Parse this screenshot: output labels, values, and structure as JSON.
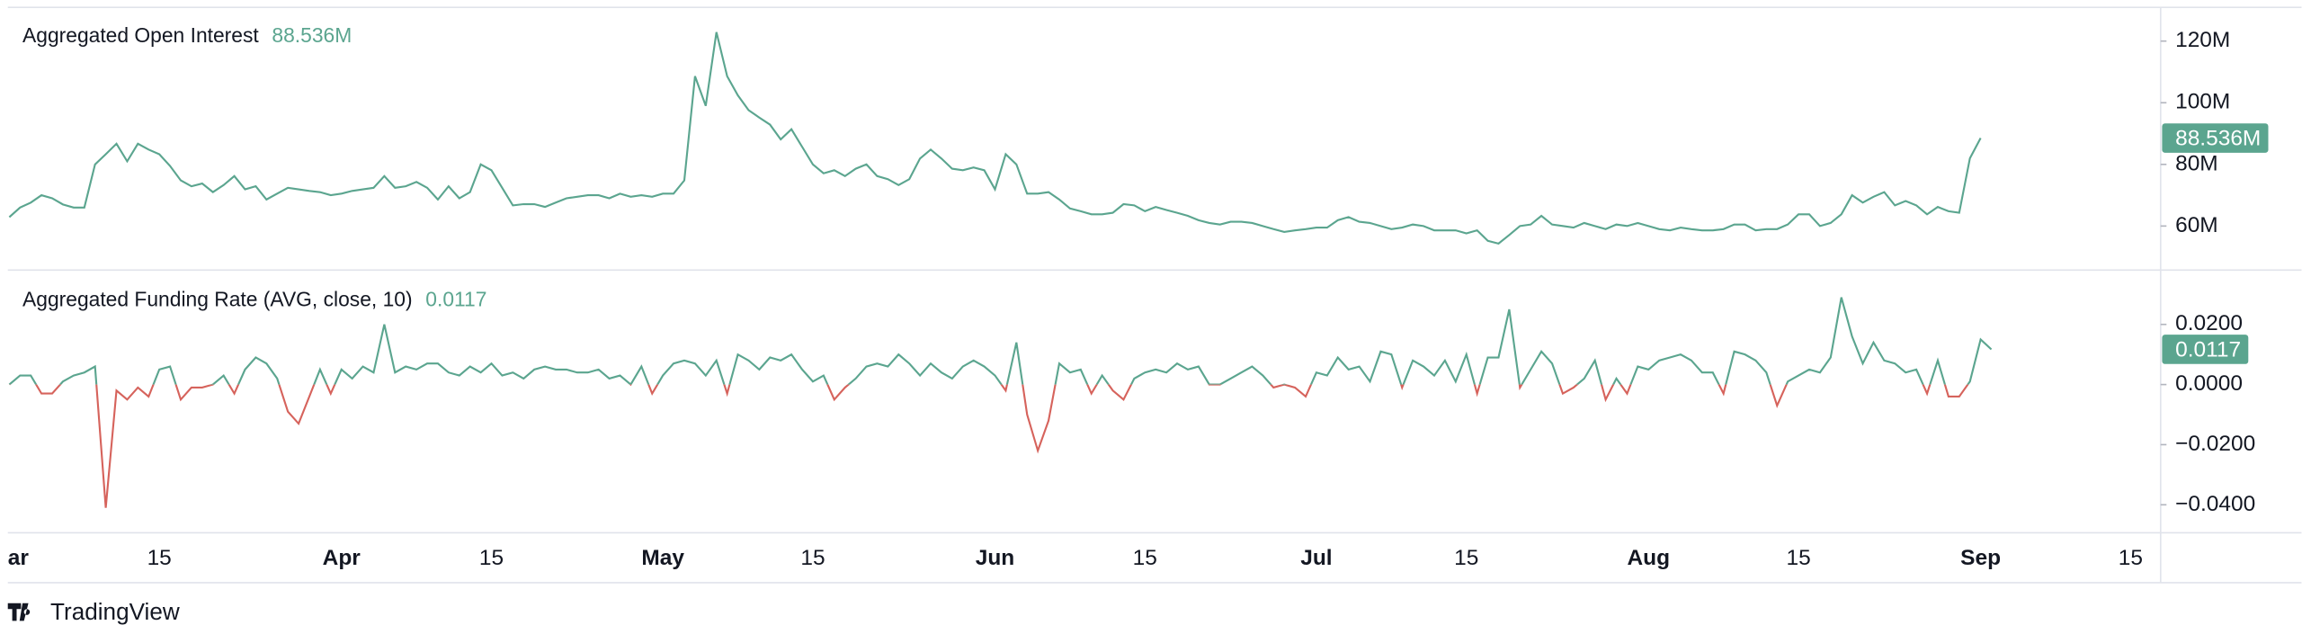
{
  "chart_data": [
    {
      "type": "line",
      "title": "Aggregated Open Interest",
      "last_label": "88.536M",
      "series": [
        {
          "name": "Aggregated Open Interest",
          "color": "#5ba58f",
          "values": [
            62.9,
            66,
            67.6,
            70,
            69,
            67,
            66,
            66,
            80,
            83.3,
            86.7,
            81,
            86.7,
            84.8,
            83.3,
            79.5,
            74.8,
            72.9,
            73.8,
            71,
            73.3,
            76.2,
            71.9,
            72.9,
            68.6,
            70.5,
            72.4,
            71.9,
            71.4,
            71,
            70,
            70.5,
            71.4,
            71.9,
            72.4,
            76.2,
            72.4,
            72.9,
            74.3,
            72.4,
            68.6,
            72.9,
            69,
            71,
            80,
            78.1,
            72.4,
            66.7,
            67.1,
            67.1,
            66.2,
            67.6,
            69,
            69.5,
            70,
            70,
            69,
            70.5,
            69.5,
            70,
            69.5,
            70.5,
            70.5,
            74.8,
            108.6,
            99,
            122.9,
            108.6,
            102.4,
            97.6,
            95.2,
            92.9,
            88.1,
            91.4,
            85.7,
            80,
            77.1,
            78.1,
            76.2,
            78.6,
            80,
            76.2,
            75.2,
            73.3,
            75.2,
            81.9,
            84.8,
            81.9,
            78.6,
            78.1,
            79,
            78.1,
            71.9,
            83.3,
            80,
            70.5,
            70.5,
            71,
            68.6,
            65.7,
            64.8,
            63.8,
            63.8,
            64.3,
            67.1,
            66.7,
            64.8,
            66.2,
            65.2,
            64.3,
            63.3,
            61.9,
            61,
            60.5,
            61.4,
            61.4,
            61,
            60,
            59,
            58.1,
            58.6,
            59,
            59.5,
            59.5,
            61.9,
            62.9,
            61.4,
            61,
            60,
            59,
            59.5,
            60.5,
            60,
            58.6,
            58.6,
            58.6,
            57.6,
            58.6,
            55.2,
            54.3,
            57.1,
            60,
            60.5,
            63.3,
            60.5,
            60,
            59.5,
            61,
            60,
            59,
            60.5,
            60,
            61,
            60,
            59,
            58.6,
            59.5,
            59,
            58.6,
            58.6,
            59,
            60.5,
            60.5,
            58.6,
            59,
            59,
            60.5,
            63.8,
            63.8,
            60,
            61,
            63.8,
            70,
            67.6,
            69.5,
            71,
            66.7,
            68.1,
            66.7,
            63.8,
            66.2,
            64.8,
            64.3,
            82,
            88.536
          ]
        }
      ],
      "ylim": [
        46.2,
        130.95
      ],
      "yticks": [
        {
          "value": 60,
          "label": "60M"
        },
        {
          "value": 80,
          "label": "80M"
        },
        {
          "value": 100,
          "label": "100M"
        },
        {
          "value": 120,
          "label": "120M"
        }
      ]
    },
    {
      "type": "line",
      "title": "Aggregated Funding Rate (AVG, close, 10)",
      "last_label": "0.0117",
      "series": [
        {
          "name": "Aggregated Funding Rate",
          "color": "#5ba58f",
          "negative_color": "#d6635c",
          "values": [
            0,
            0.003,
            0.003,
            -0.003,
            -0.003,
            0.001,
            0.003,
            0.004,
            0.006,
            -0.041,
            -0.002,
            -0.005,
            -0.001,
            -0.004,
            0.005,
            0.006,
            -0.005,
            -0.001,
            -0.001,
            0,
            0.003,
            -0.003,
            0.005,
            0.009,
            0.007,
            0.002,
            -0.009,
            -0.013,
            -0.004,
            0.005,
            -0.003,
            0.005,
            0.002,
            0.006,
            0.004,
            0.02,
            0.004,
            0.006,
            0.005,
            0.007,
            0.007,
            0.004,
            0.003,
            0.006,
            0.004,
            0.007,
            0.003,
            0.004,
            0.002,
            0.005,
            0.006,
            0.005,
            0.005,
            0.004,
            0.004,
            0.005,
            0.002,
            0.003,
            0,
            0.006,
            -0.003,
            0.003,
            0.007,
            0.008,
            0.007,
            0.003,
            0.008,
            -0.003,
            0.01,
            0.008,
            0.005,
            0.009,
            0.008,
            0.01,
            0.005,
            0.001,
            0.003,
            -0.005,
            -0.001,
            0.002,
            0.006,
            0.007,
            0.006,
            0.01,
            0.007,
            0.003,
            0.007,
            0.004,
            0.002,
            0.006,
            0.008,
            0.006,
            0.003,
            -0.002,
            0.014,
            -0.01,
            -0.022,
            -0.012,
            0.007,
            0.004,
            0.005,
            -0.003,
            0.003,
            -0.002,
            -0.005,
            0.002,
            0.004,
            0.005,
            0.004,
            0.007,
            0.005,
            0.006,
            0,
            0,
            0.002,
            0.004,
            0.006,
            0.003,
            -0.001,
            0,
            -0.001,
            -0.004,
            0.004,
            0.003,
            0.009,
            0.005,
            0.006,
            0.001,
            0.011,
            0.01,
            -0.001,
            0.008,
            0.006,
            0.003,
            0.008,
            0.001,
            0.01,
            -0.003,
            0.009,
            0.009,
            0.025,
            -0.001,
            0.005,
            0.011,
            0.007,
            -0.003,
            -0.001,
            0.002,
            0.008,
            -0.005,
            0.002,
            -0.003,
            0.006,
            0.005,
            0.008,
            0.009,
            0.01,
            0.008,
            0.004,
            0.004,
            -0.003,
            0.011,
            0.01,
            0.008,
            0.004,
            -0.007,
            0.001,
            0.003,
            0.005,
            0.004,
            0.009,
            0.029,
            0.016,
            0.007,
            0.014,
            0.008,
            0.007,
            0.004,
            0.005,
            -0.003,
            0.008,
            -0.004,
            -0.004,
            0.001,
            0.015,
            0.0117
          ]
        }
      ],
      "ylim": [
        -0.0493,
        0.0376
      ],
      "yticks": [
        {
          "value": -0.04,
          "label": "−0.0400"
        },
        {
          "value": -0.02,
          "label": "−0.0200"
        },
        {
          "value": 0,
          "label": "0.0000"
        },
        {
          "value": 0.02,
          "label": "0.0200"
        }
      ]
    }
  ],
  "x_axis": {
    "xlim": [
      -0.14,
      200.8
    ],
    "xticks": [
      {
        "value": 0,
        "label": "ar",
        "bold": true
      },
      {
        "value": 14,
        "label": "15"
      },
      {
        "value": 31,
        "label": "Apr",
        "bold": true
      },
      {
        "value": 45,
        "label": "15"
      },
      {
        "value": 61,
        "label": "May",
        "bold": true
      },
      {
        "value": 75,
        "label": "15"
      },
      {
        "value": 92,
        "label": "Jun",
        "bold": true
      },
      {
        "value": 106,
        "label": "15"
      },
      {
        "value": 122,
        "label": "Jul",
        "bold": true
      },
      {
        "value": 136,
        "label": "15"
      },
      {
        "value": 153,
        "label": "Aug",
        "bold": true
      },
      {
        "value": 167,
        "label": "15"
      },
      {
        "value": 184,
        "label": "Sep",
        "bold": true
      },
      {
        "value": 198,
        "label": "15"
      }
    ]
  },
  "brand": "TradingView"
}
